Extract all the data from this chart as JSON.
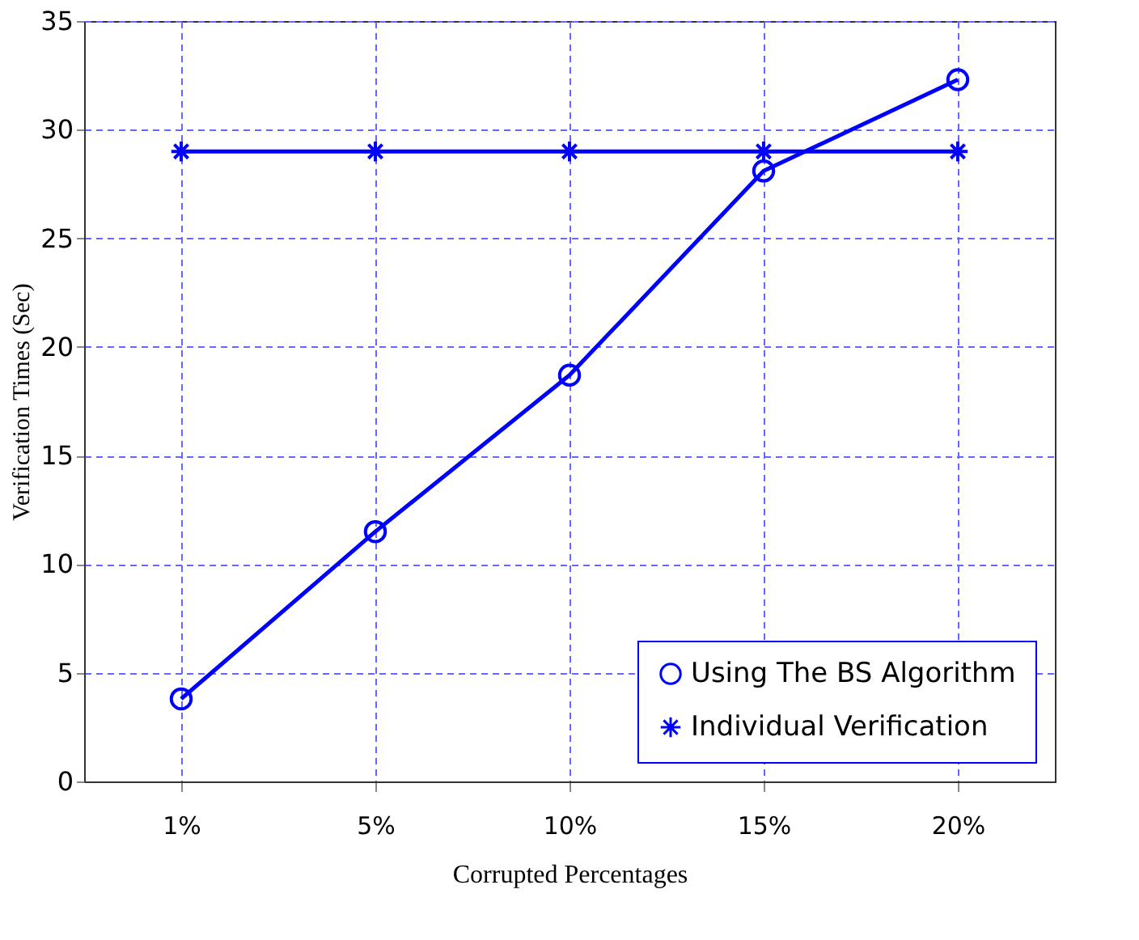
{
  "chart_data": {
    "type": "line",
    "xlabel": "Corrupted Percentages",
    "ylabel": "Verification Times (Sec)",
    "categories": [
      "1%",
      "5%",
      "10%",
      "15%",
      "20%"
    ],
    "series": [
      {
        "name": "Using The BS Algorithm",
        "color": "#0000ff",
        "marker": "circle",
        "values": [
          3.8,
          11.5,
          18.7,
          28.1,
          32.3
        ]
      },
      {
        "name": "Individual Verification",
        "color": "#0000ff",
        "marker": "cross",
        "values": [
          29,
          29,
          29,
          29,
          29
        ]
      }
    ],
    "ylim": [
      0,
      35
    ],
    "yticks": [
      0,
      5,
      10,
      15,
      20,
      25,
      30,
      35
    ],
    "grid": true,
    "legend": "bottom right",
    "line_style": "solid"
  }
}
